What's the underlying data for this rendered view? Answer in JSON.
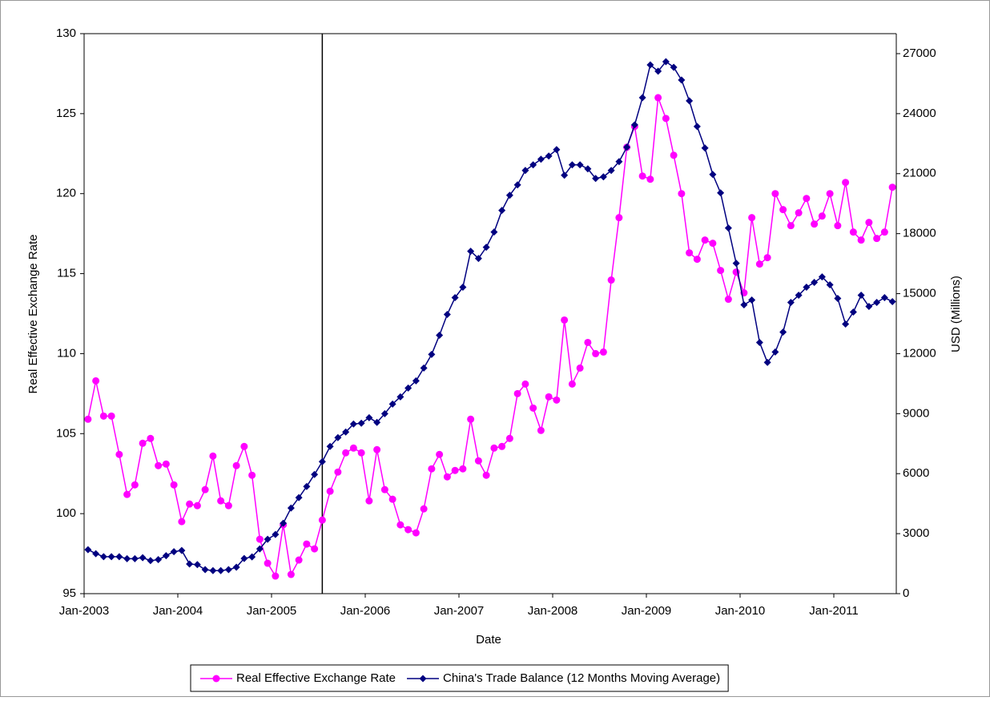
{
  "chart_data": {
    "type": "line",
    "x_label": "Date",
    "y_label": "Real Effective Exchange Rate",
    "y2_label": "USD (Millions)",
    "categories": [
      "Jan-2003",
      null,
      null,
      null,
      null,
      null,
      null,
      null,
      null,
      null,
      null,
      null,
      "Jan-2004",
      null,
      null,
      null,
      null,
      null,
      null,
      null,
      null,
      null,
      null,
      null,
      "Jan-2005",
      null,
      null,
      null,
      null,
      null,
      null,
      null,
      null,
      null,
      null,
      null,
      "Jan-2006",
      null,
      null,
      null,
      null,
      null,
      null,
      null,
      null,
      null,
      null,
      null,
      "Jan-2007",
      null,
      null,
      null,
      null,
      null,
      null,
      null,
      null,
      null,
      null,
      null,
      "Jan-2008",
      null,
      null,
      null,
      null,
      null,
      null,
      null,
      null,
      null,
      null,
      null,
      "Jan-2009",
      null,
      null,
      null,
      null,
      null,
      null,
      null,
      null,
      null,
      null,
      null,
      "Jan-2010",
      null,
      null,
      null,
      null,
      null,
      null,
      null,
      null,
      null,
      null,
      null,
      "Jan-2011",
      null,
      null,
      null,
      null,
      null,
      null,
      null
    ],
    "series": [
      {
        "name": "Real Effective Exchange Rate",
        "color": "#ff00ff",
        "marker": "circle",
        "values": [
          105.9,
          108.3,
          106.1,
          106.1,
          103.7,
          101.2,
          101.8,
          104.4,
          104.7,
          103.0,
          103.1,
          101.8,
          99.5,
          100.6,
          100.5,
          101.5,
          103.6,
          100.8,
          100.5,
          103.0,
          104.2,
          102.4,
          98.4,
          96.9,
          96.1,
          99.3,
          96.2,
          97.1,
          98.1,
          97.8,
          99.6,
          101.4,
          102.6,
          103.8,
          104.1,
          103.8,
          100.8,
          104.0,
          101.5,
          100.9,
          99.3,
          99.0,
          98.8,
          100.3,
          102.8,
          103.7,
          102.3,
          102.7,
          102.8,
          105.9,
          103.3,
          102.4,
          104.1,
          104.2,
          104.7,
          107.5,
          108.1,
          106.6,
          105.2,
          107.3,
          107.1,
          112.1,
          108.1,
          109.1,
          110.7,
          110.0,
          110.1,
          114.6,
          118.5,
          122.9,
          124.2,
          121.1,
          120.9,
          126.0,
          124.7,
          122.4,
          120.0,
          116.3,
          115.9,
          117.1,
          116.9,
          115.2,
          113.4,
          115.1,
          113.8,
          118.5,
          115.6,
          116.0,
          120.0,
          119.0,
          118.0,
          118.8,
          119.7,
          118.1,
          118.6,
          120.0,
          118.0,
          120.7,
          117.6,
          117.1,
          118.2,
          117.2,
          117.6,
          120.4
        ]
      },
      {
        "name": "China's Trade Balance (12 Months Moving Average)",
        "color": "#000080",
        "marker": "diamond",
        "axis": "y2",
        "values": [
          2200,
          2000,
          1850,
          1850,
          1850,
          1750,
          1750,
          1800,
          1650,
          1700,
          1900,
          2100,
          2160,
          1480,
          1450,
          1200,
          1150,
          1150,
          1200,
          1320,
          1760,
          1840,
          2240,
          2720,
          2960,
          3520,
          4280,
          4800,
          5360,
          5960,
          6600,
          7360,
          7800,
          8080,
          8480,
          8520,
          8800,
          8560,
          9000,
          9480,
          9840,
          10280,
          10640,
          11280,
          11960,
          12920,
          13960,
          14800,
          15320,
          17120,
          16760,
          17320,
          18080,
          19160,
          19920,
          20440,
          21160,
          21440,
          21720,
          21880,
          22200,
          20920,
          21440,
          21440,
          21240,
          20760,
          20840,
          21160,
          21600,
          22320,
          23440,
          24800,
          26440,
          26120,
          26600,
          26320,
          25680,
          24640,
          23360,
          22280,
          20960,
          20040,
          18280,
          16520,
          14440,
          14680,
          12560,
          11560,
          12080,
          13080,
          14560,
          14920,
          15320,
          15560,
          15840,
          15440,
          14760,
          13480,
          14080,
          14920,
          14360,
          14560,
          14800,
          14600
        ]
      }
    ],
    "ylim": [
      95,
      130
    ],
    "yticks": [
      95,
      100,
      105,
      110,
      115,
      120,
      125,
      130
    ],
    "y2lim": [
      0,
      28000
    ],
    "y2ticks": [
      0,
      3000,
      6000,
      9000,
      12000,
      15000,
      18000,
      21000,
      24000,
      27000
    ],
    "reference_line_index": 30,
    "legend": "bottom"
  }
}
